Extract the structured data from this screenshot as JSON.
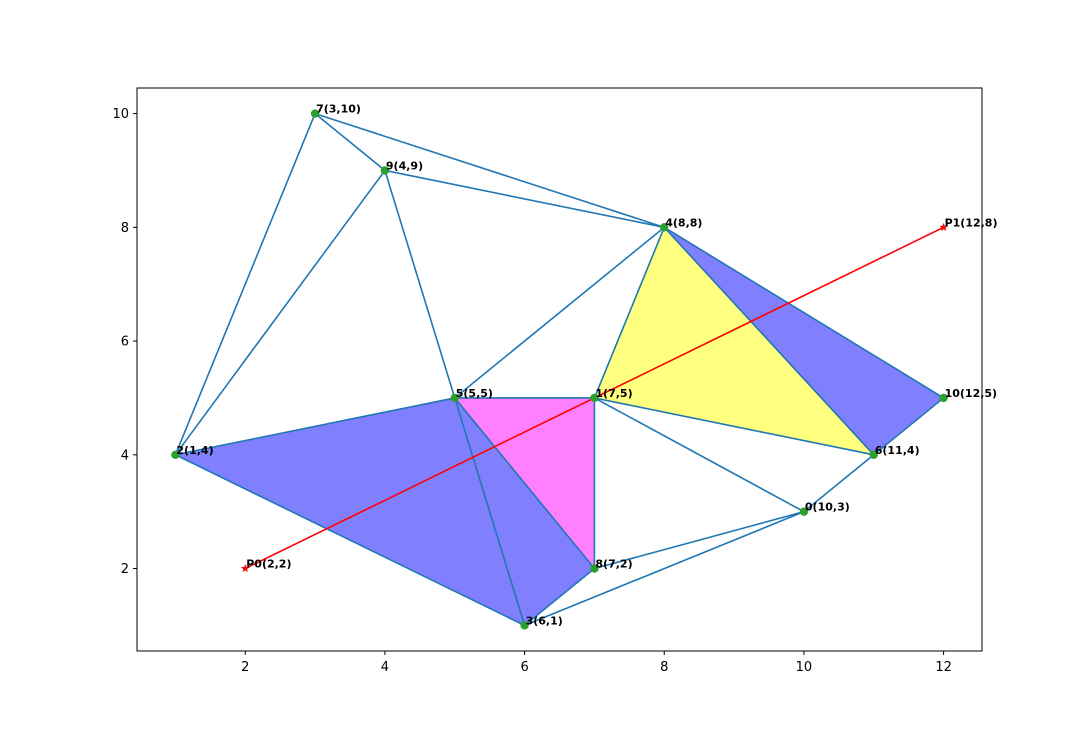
{
  "chart_data": {
    "type": "scatter",
    "title": "",
    "xlabel": "",
    "ylabel": "",
    "xlim": [
      0.45,
      12.55
    ],
    "ylim": [
      0.55,
      10.45
    ],
    "xticks": [
      2,
      4,
      6,
      8,
      10,
      12
    ],
    "yticks": [
      2,
      4,
      6,
      8,
      10
    ],
    "grid": false,
    "colors": {
      "edge": "#1f77b4",
      "point": "#2ca02c",
      "segment": "#ff0000",
      "blue_fill": "#8080ff",
      "magenta_fill": "#ff80ff",
      "yellow_fill": "#ffff80"
    },
    "points": [
      {
        "id": 0,
        "label": "0(10,3)",
        "x": 10,
        "y": 3
      },
      {
        "id": 1,
        "label": "1(7,5)",
        "x": 7,
        "y": 5
      },
      {
        "id": 2,
        "label": "2(1,4)",
        "x": 1,
        "y": 4
      },
      {
        "id": 3,
        "label": "3(6,1)",
        "x": 6,
        "y": 1
      },
      {
        "id": 4,
        "label": "4(8,8)",
        "x": 8,
        "y": 8
      },
      {
        "id": 5,
        "label": "5(5,5)",
        "x": 5,
        "y": 5
      },
      {
        "id": 6,
        "label": "6(11,4)",
        "x": 11,
        "y": 4
      },
      {
        "id": 7,
        "label": "7(3,10)",
        "x": 3,
        "y": 10
      },
      {
        "id": 8,
        "label": "8(7,2)",
        "x": 7,
        "y": 2
      },
      {
        "id": 9,
        "label": "9(4,9)",
        "x": 4,
        "y": 9
      },
      {
        "id": 10,
        "label": "10(12,5)",
        "x": 12,
        "y": 5
      }
    ],
    "edges": [
      [
        7,
        9
      ],
      [
        7,
        4
      ],
      [
        7,
        2
      ],
      [
        9,
        4
      ],
      [
        9,
        2
      ],
      [
        9,
        5
      ],
      [
        4,
        5
      ],
      [
        4,
        1
      ],
      [
        4,
        6
      ],
      [
        4,
        10
      ],
      [
        10,
        6
      ],
      [
        5,
        1
      ],
      [
        5,
        2
      ],
      [
        5,
        3
      ],
      [
        5,
        8
      ],
      [
        1,
        8
      ],
      [
        1,
        6
      ],
      [
        1,
        0
      ],
      [
        6,
        0
      ],
      [
        2,
        3
      ],
      [
        3,
        8
      ],
      [
        3,
        0
      ],
      [
        8,
        0
      ]
    ],
    "filled_triangles": [
      {
        "vertices": [
          2,
          5,
          3
        ],
        "color": "blue_fill"
      },
      {
        "vertices": [
          5,
          3,
          8
        ],
        "color": "blue_fill"
      },
      {
        "vertices": [
          5,
          1,
          8
        ],
        "color": "magenta_fill"
      },
      {
        "vertices": [
          1,
          4,
          6
        ],
        "color": "yellow_fill"
      },
      {
        "vertices": [
          4,
          6,
          10
        ],
        "color": "blue_fill"
      }
    ],
    "segment": {
      "start": {
        "label": "P0(2,2)",
        "x": 2,
        "y": 2
      },
      "end": {
        "label": "P1(12,8)",
        "x": 12,
        "y": 8
      }
    }
  }
}
